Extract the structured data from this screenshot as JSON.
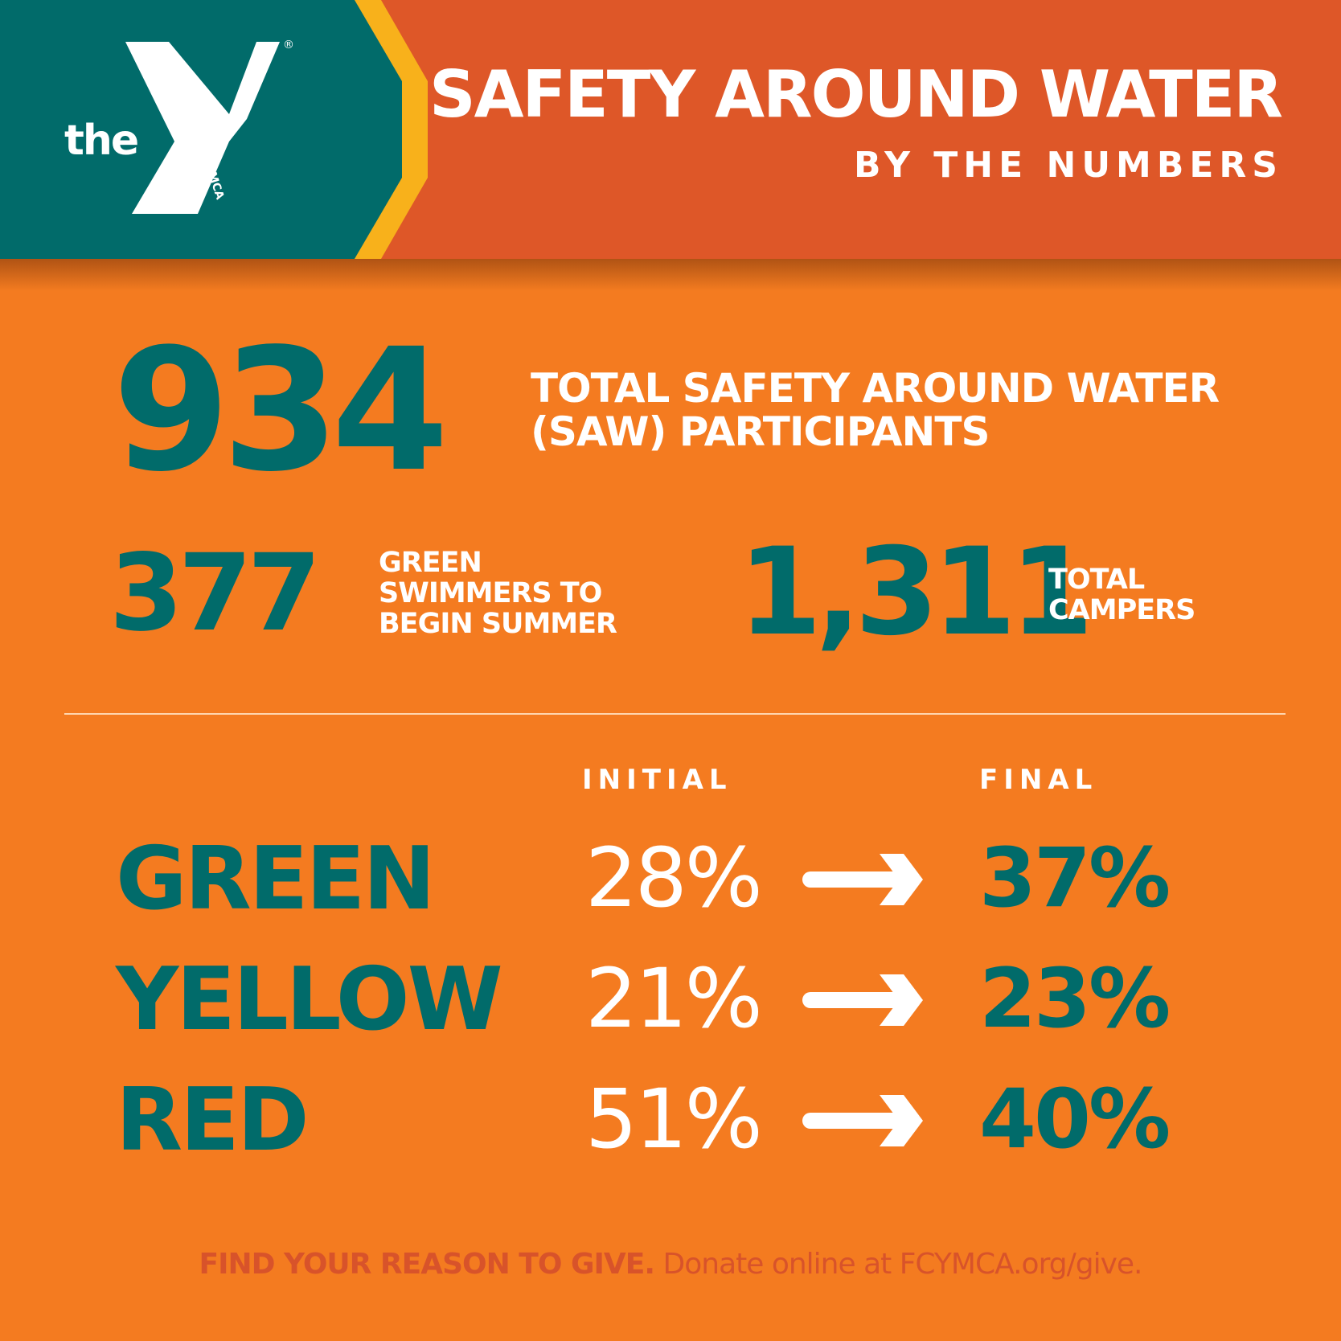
{
  "header": {
    "logo": {
      "word": "the",
      "vertical_text": "YMCA",
      "registered_mark": "®",
      "colors": {
        "teal": "#016b6a",
        "gold": "#f8b11b",
        "white": "#ffffff"
      }
    },
    "title": "SAFETY AROUND WATER",
    "subtitle": "BY THE NUMBERS"
  },
  "stats": {
    "participants": {
      "value": "934",
      "label_line1": "TOTAL SAFETY AROUND WATER",
      "label_line2": "(SAW) PARTICIPANTS"
    },
    "green_swimmers": {
      "value": "377",
      "label_line1": "GREEN",
      "label_line2": "SWIMMERS TO",
      "label_line3": "BEGIN SUMMER"
    },
    "campers": {
      "value": "1,311",
      "label_line1": "TOTAL",
      "label_line2": "CAMPERS"
    }
  },
  "table": {
    "initial_header": "INITIAL",
    "final_header": "FINAL",
    "rows": [
      {
        "label": "GREEN",
        "initial": "28%",
        "final": "37%",
        "arrow_icon": "right-arrow-icon"
      },
      {
        "label": "YELLOW",
        "initial": "21%",
        "final": "23%",
        "arrow_icon": "right-arrow-icon"
      },
      {
        "label": "RED",
        "initial": "51%",
        "final": "40%",
        "arrow_icon": "right-arrow-icon"
      }
    ]
  },
  "footer": {
    "bold_text": "FIND YOUR REASON TO GIVE.",
    "normal_text": " Donate online at FCYMCA.org/give."
  },
  "colors": {
    "background_orange": "#f47b20",
    "header_orange": "#de5728",
    "teal": "#016b6a",
    "gold": "#f8b11b",
    "footer_text": "#d8532a"
  }
}
